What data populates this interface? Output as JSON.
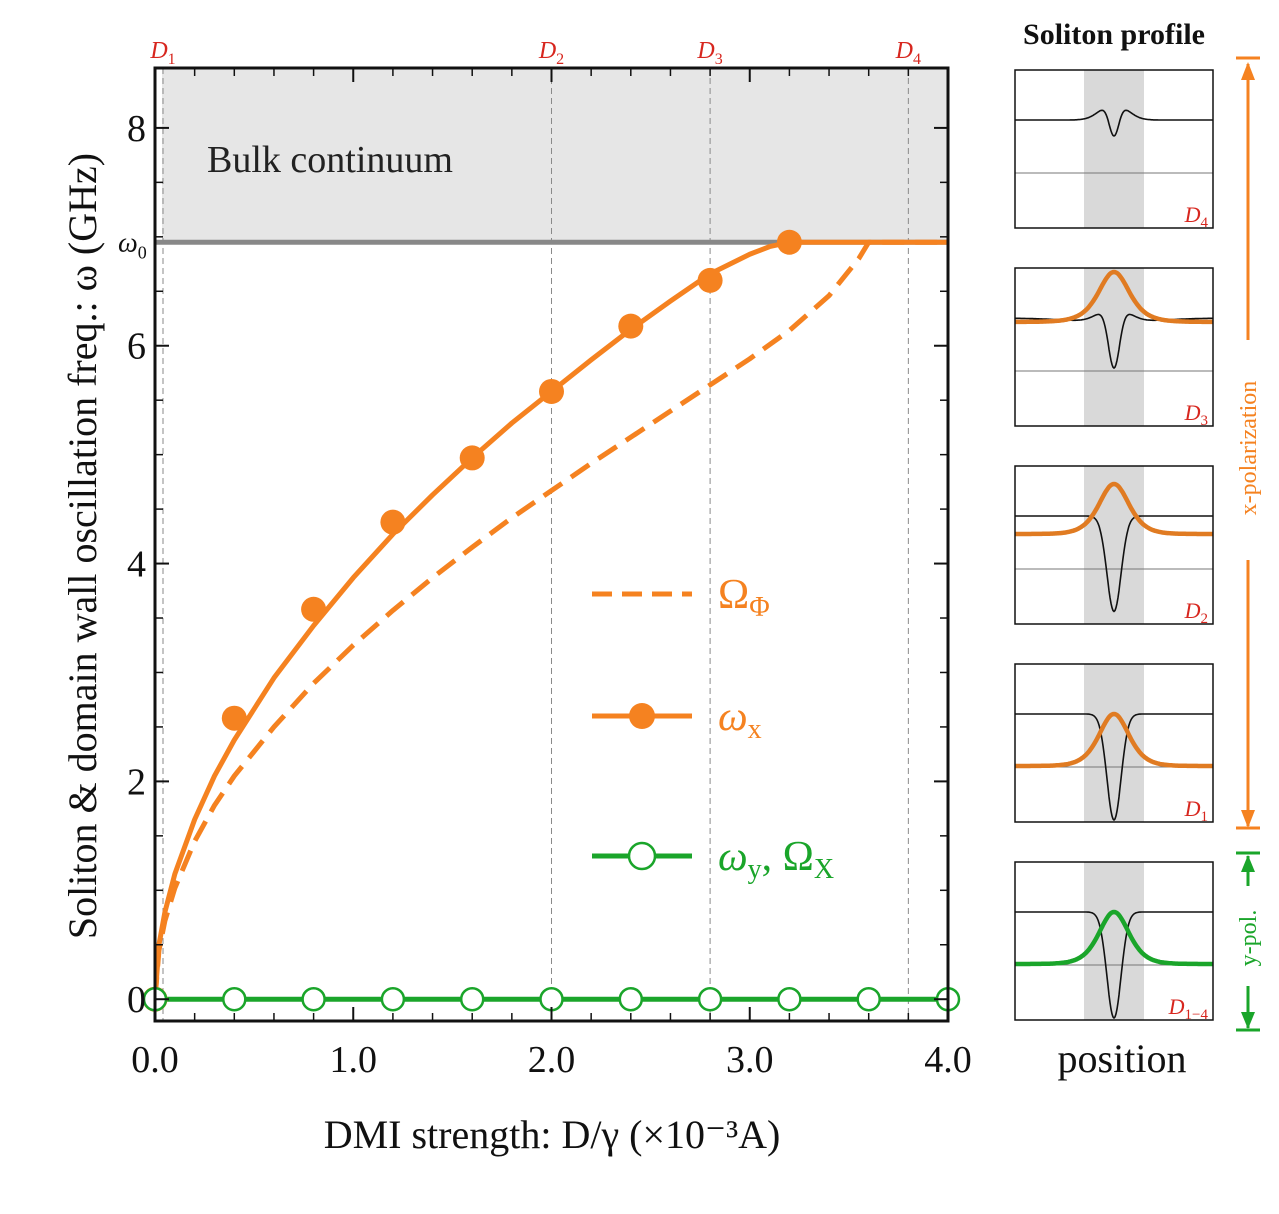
{
  "chart_data": [
    {
      "type": "line",
      "title": "",
      "xlabel": "DMI strength: D/γ (×10⁻³A)",
      "ylabel": "Soliton & domain wall oscillation freq.: ω (GHz)",
      "xlim": [
        0,
        4.0
      ],
      "ylim": [
        -0.2,
        8.55
      ],
      "xticks": [
        "0.0",
        "1.0",
        "2.0",
        "3.0",
        "4.0"
      ],
      "xtick_values": [
        0,
        1,
        2,
        3,
        4
      ],
      "yticks": [
        "0",
        "2",
        "4",
        "6",
        "8"
      ],
      "ytick_values": [
        0,
        2,
        4,
        6,
        8
      ],
      "omega0": {
        "label": "ω",
        "sub": "0",
        "value": 6.95
      },
      "bulk_label": "Bulk continuum",
      "markers": [
        {
          "label": "D",
          "sub": "1",
          "x": 0.0
        },
        {
          "label": "D",
          "sub": "2",
          "x": 2.0
        },
        {
          "label": "D",
          "sub": "3",
          "x": 2.8
        },
        {
          "label": "D",
          "sub": "4",
          "x": 3.8
        }
      ],
      "series": [
        {
          "name": "ΩΦ",
          "legend_main": "Ω",
          "legend_sub": "Φ",
          "style": "dashed",
          "color": "#f58220",
          "x": [
            0,
            0.02,
            0.05,
            0.1,
            0.2,
            0.3,
            0.4,
            0.6,
            0.8,
            1.0,
            1.2,
            1.4,
            1.6,
            1.8,
            2.0,
            2.2,
            2.4,
            2.6,
            2.8,
            3.0,
            3.2,
            3.4,
            3.55,
            3.6,
            4.0
          ],
          "values": [
            0,
            0.45,
            0.72,
            1.02,
            1.45,
            1.78,
            2.05,
            2.5,
            2.9,
            3.25,
            3.57,
            3.87,
            4.15,
            4.42,
            4.67,
            4.92,
            5.16,
            5.4,
            5.64,
            5.88,
            6.14,
            6.46,
            6.8,
            6.95,
            6.95
          ]
        },
        {
          "name": "ωx",
          "legend_main": "ω",
          "legend_sub": "x",
          "style": "solid-filled-markers",
          "color": "#f58220",
          "x": [
            0,
            0.02,
            0.05,
            0.1,
            0.2,
            0.3,
            0.4,
            0.6,
            0.8,
            1.0,
            1.2,
            1.4,
            1.6,
            1.8,
            2.0,
            2.2,
            2.4,
            2.6,
            2.8,
            3.0,
            3.1,
            3.2,
            3.3,
            3.5,
            4.0
          ],
          "values": [
            0,
            0.5,
            0.8,
            1.15,
            1.65,
            2.05,
            2.38,
            2.95,
            3.43,
            3.87,
            4.27,
            4.63,
            4.97,
            5.29,
            5.58,
            5.87,
            6.15,
            6.41,
            6.66,
            6.84,
            6.91,
            6.95,
            6.95,
            6.95,
            6.95
          ],
          "marker_x": [
            0,
            0.4,
            0.8,
            1.2,
            1.6,
            2.0,
            2.4,
            2.8,
            3.2
          ],
          "marker_y": [
            0,
            2.58,
            3.58,
            4.38,
            4.97,
            5.58,
            6.18,
            6.6,
            6.95
          ]
        },
        {
          "name": "ωy, ΩX",
          "legend_main": "ω",
          "legend_sub": "y",
          "legend_sep": ", Ω",
          "legend_sub2": "X",
          "style": "solid-open-markers",
          "color": "#1aa52a",
          "x": [
            0,
            4.0
          ],
          "values": [
            0,
            0
          ],
          "marker_x": [
            0,
            0.4,
            0.8,
            1.2,
            1.6,
            2.0,
            2.4,
            2.8,
            3.2,
            3.6,
            4.0
          ],
          "marker_y": [
            0,
            0,
            0,
            0,
            0,
            0,
            0,
            0,
            0,
            0,
            0
          ]
        }
      ]
    },
    {
      "type": "line",
      "title": "Soliton profile",
      "xlabel": "position",
      "panels": [
        {
          "label": "D",
          "sub": "4",
          "profile_depth": 0.45,
          "colored_peak": null
        },
        {
          "label": "D",
          "sub": "3",
          "profile_depth": 0.65,
          "colored_peak": 0.62
        },
        {
          "label": "D",
          "sub": "2",
          "profile_depth": 0.9,
          "colored_peak": 0.55
        },
        {
          "label": "D",
          "sub": "1",
          "profile_depth": 1.0,
          "colored_peak": 0.6
        },
        {
          "label": "D",
          "sub": "1−4",
          "profile_depth": 1.0,
          "colored_peak": 0.6
        }
      ],
      "x_polarization_label": "x-polarization",
      "y_polarization_label": "y-pol.",
      "x_color": "#f58220",
      "y_color": "#1aa52a",
      "profile_color": "#e07b22"
    }
  ]
}
